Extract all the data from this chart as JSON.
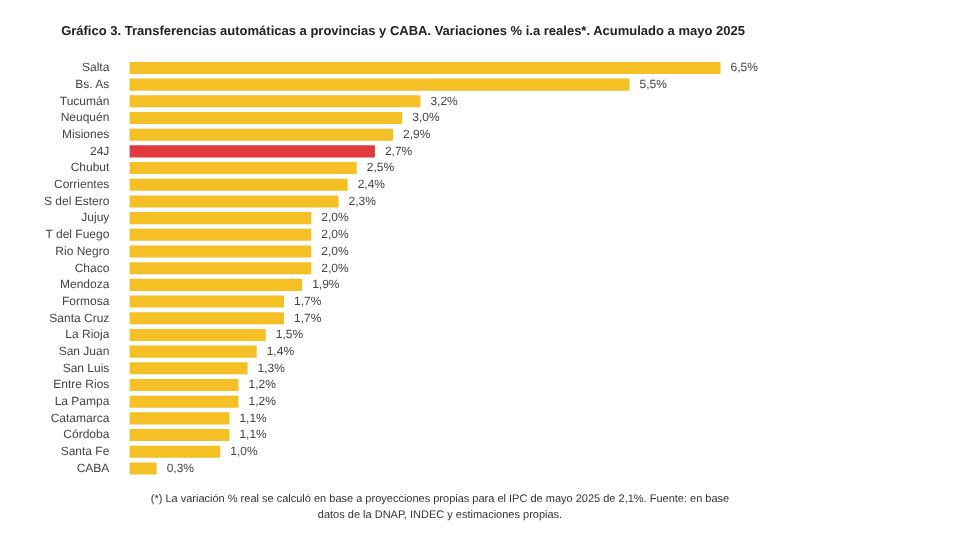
{
  "chart_data": {
    "type": "bar",
    "orientation": "horizontal",
    "title": "Gráfico 3. Transferencias automáticas a provincias y CABA. Variaciones % i.a reales*. Acumulado a mayo 2025",
    "categories": [
      "Salta",
      "Bs. As",
      "Tucumán",
      "Neuquén",
      "Misiones",
      "24J",
      "Chubut",
      "Corrientes",
      "S del Estero",
      "Jujuy",
      "T del Fuego",
      "Rio Negro",
      "Chaco",
      "Mendoza",
      "Formosa",
      "Santa Cruz",
      "La Rioja",
      "San Juan",
      "San Luis",
      "Entre Rios",
      "La Pampa",
      "Catamarca",
      "Córdoba",
      "Santa Fe",
      "CABA"
    ],
    "values": [
      6.5,
      5.5,
      3.2,
      3.0,
      2.9,
      2.7,
      2.5,
      2.4,
      2.3,
      2.0,
      2.0,
      2.0,
      2.0,
      1.9,
      1.7,
      1.7,
      1.5,
      1.4,
      1.3,
      1.2,
      1.2,
      1.1,
      1.1,
      1.0,
      0.3
    ],
    "value_labels": [
      "6,5%",
      "5,5%",
      "3,2%",
      "3,0%",
      "2,9%",
      "2,7%",
      "2,5%",
      "2,4%",
      "2,3%",
      "2,0%",
      "2,0%",
      "2,0%",
      "2,0%",
      "1,9%",
      "1,7%",
      "1,7%",
      "1,5%",
      "1,4%",
      "1,3%",
      "1,2%",
      "1,2%",
      "1,1%",
      "1,1%",
      "1,0%",
      "0,3%"
    ],
    "colors": [
      "#f4c025",
      "#f4c025",
      "#f4c025",
      "#f4c025",
      "#f4c025",
      "#e0393e",
      "#f4c025",
      "#f4c025",
      "#f4c025",
      "#f4c025",
      "#f4c025",
      "#f4c025",
      "#f4c025",
      "#f4c025",
      "#f4c025",
      "#f4c025",
      "#f4c025",
      "#f4c025",
      "#f4c025",
      "#f4c025",
      "#f4c025",
      "#f4c025",
      "#f4c025",
      "#f4c025",
      "#f4c025"
    ],
    "legend": false,
    "annotations": [
      "(*) La variación % real se calculó en base a proyecciones propias para el IPC de mayo 2025 de 2,1%. Fuente: en base datos de la DNAP, INDEC y estimaciones propias."
    ]
  }
}
